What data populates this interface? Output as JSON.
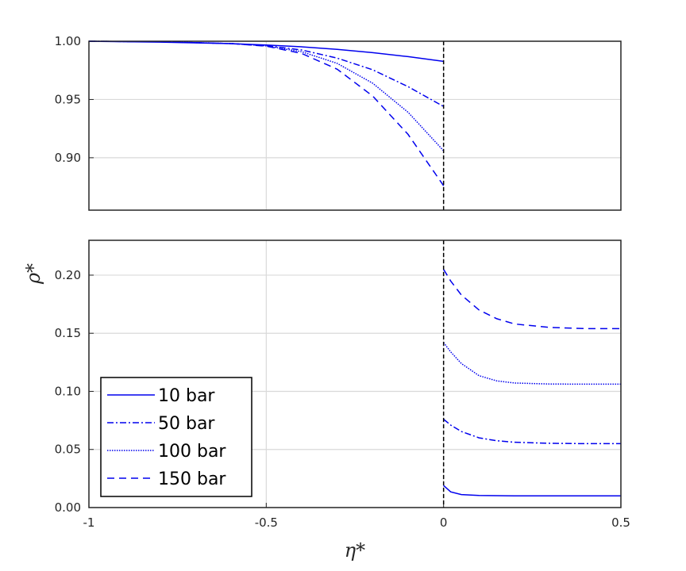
{
  "chart_data": [
    {
      "type": "line",
      "panel": "top",
      "title": "",
      "xlabel": "",
      "ylabel": "",
      "xlim": [
        -1,
        0.5
      ],
      "ylim": [
        0.855,
        1.0
      ],
      "yticks": [
        0.9,
        0.95,
        1.0
      ],
      "ytick_labels": [
        "0.90",
        "0.95",
        "1.00"
      ],
      "xticks": [
        -0.5,
        0
      ],
      "grid": true,
      "interface_x": 0,
      "series": [
        {
          "name": "10 bar",
          "style": "solid",
          "color": "#0000ee",
          "x": [
            -1,
            -0.8,
            -0.6,
            -0.5,
            -0.4,
            -0.3,
            -0.2,
            -0.1,
            0
          ],
          "y": [
            1.0,
            0.9992,
            0.998,
            0.9968,
            0.9952,
            0.993,
            0.9902,
            0.9868,
            0.9827
          ]
        },
        {
          "name": "50 bar",
          "style": "dashdot",
          "color": "#0000ee",
          "x": [
            -1,
            -0.8,
            -0.6,
            -0.5,
            -0.4,
            -0.3,
            -0.2,
            -0.1,
            0
          ],
          "y": [
            1.0,
            0.9995,
            0.998,
            0.9962,
            0.9925,
            0.9855,
            0.9755,
            0.961,
            0.944
          ]
        },
        {
          "name": "100 bar",
          "style": "dotted",
          "color": "#0000ee",
          "x": [
            -1,
            -0.8,
            -0.6,
            -0.5,
            -0.4,
            -0.3,
            -0.2,
            -0.1,
            0
          ],
          "y": [
            1.0,
            0.9996,
            0.998,
            0.996,
            0.991,
            0.981,
            0.964,
            0.939,
            0.906
          ]
        },
        {
          "name": "150 bar",
          "style": "dashed",
          "color": "#0000ee",
          "x": [
            -1,
            -0.8,
            -0.6,
            -0.5,
            -0.4,
            -0.3,
            -0.2,
            -0.1,
            0
          ],
          "y": [
            1.0,
            0.9996,
            0.998,
            0.9958,
            0.9895,
            0.976,
            0.953,
            0.92,
            0.876
          ]
        }
      ]
    },
    {
      "type": "line",
      "panel": "bottom",
      "title": "",
      "xlabel": "η*",
      "ylabel": "ρ*",
      "xlim": [
        -1,
        0.5
      ],
      "ylim": [
        0,
        0.23
      ],
      "yticks": [
        0.0,
        0.05,
        0.1,
        0.15,
        0.2
      ],
      "ytick_labels": [
        "0.00",
        "0.05",
        "0.10",
        "0.15",
        "0.20"
      ],
      "xticks": [
        -1,
        -0.5,
        0,
        0.5
      ],
      "xtick_labels": [
        "-1",
        "-0.5",
        "0",
        "0.5"
      ],
      "grid": true,
      "interface_x": 0,
      "legend": "lower-left",
      "series": [
        {
          "name": "10 bar",
          "style": "solid",
          "color": "#0000ee",
          "x": [
            0,
            0.02,
            0.05,
            0.1,
            0.15,
            0.2,
            0.3,
            0.4,
            0.5
          ],
          "y": [
            0.019,
            0.0135,
            0.0112,
            0.0104,
            0.0102,
            0.0101,
            0.0101,
            0.0101,
            0.0101
          ]
        },
        {
          "name": "50 bar",
          "style": "dashdot",
          "color": "#0000ee",
          "x": [
            0,
            0.02,
            0.05,
            0.1,
            0.15,
            0.2,
            0.3,
            0.4,
            0.5
          ],
          "y": [
            0.076,
            0.071,
            0.0655,
            0.06,
            0.0575,
            0.0562,
            0.0553,
            0.055,
            0.055
          ]
        },
        {
          "name": "100 bar",
          "style": "dotted",
          "color": "#0000ee",
          "x": [
            0,
            0.02,
            0.05,
            0.1,
            0.15,
            0.2,
            0.3,
            0.4,
            0.5
          ],
          "y": [
            0.142,
            0.134,
            0.124,
            0.1135,
            0.109,
            0.1072,
            0.1063,
            0.1062,
            0.1062
          ]
        },
        {
          "name": "150 bar",
          "style": "dashed",
          "color": "#0000ee",
          "x": [
            0,
            0.02,
            0.05,
            0.1,
            0.15,
            0.2,
            0.3,
            0.4,
            0.5
          ],
          "y": [
            0.205,
            0.195,
            0.183,
            0.17,
            0.1625,
            0.158,
            0.155,
            0.154,
            0.154
          ]
        }
      ]
    }
  ],
  "legend": {
    "entries": [
      {
        "label": "10 bar",
        "style": "solid"
      },
      {
        "label": "50 bar",
        "style": "dashdot"
      },
      {
        "label": "100 bar",
        "style": "dotted"
      },
      {
        "label": "150 bar",
        "style": "dashed"
      }
    ]
  },
  "colors": {
    "series": "#0000ee",
    "grid": "#d9d9d9",
    "axis": "#262626",
    "interface": "#000000"
  }
}
